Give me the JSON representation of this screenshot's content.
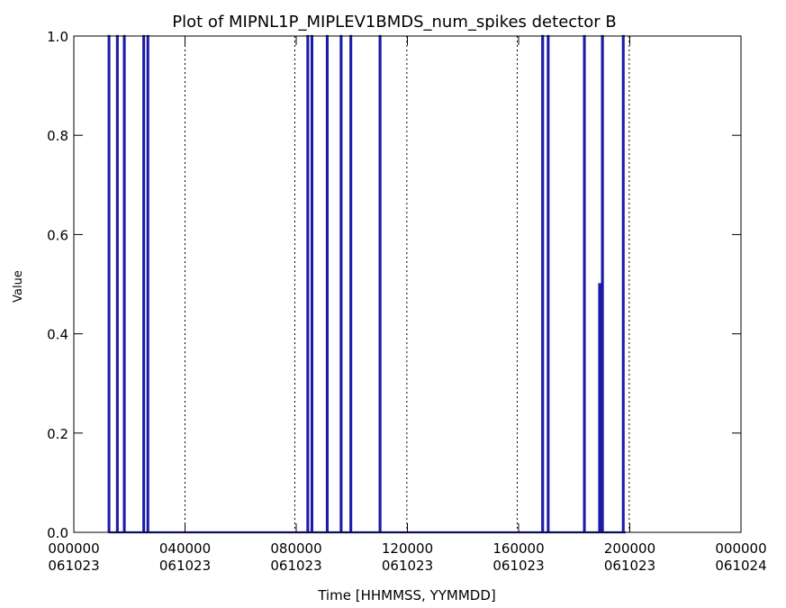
{
  "chart_data": {
    "type": "line",
    "title": "Plot of MIPNL1P_MIPLEV1BMDS_num_spikes detector B",
    "xlabel": "Time [HHMMSS, YYMMDD]",
    "ylabel": "Value",
    "xlim_hours": [
      0,
      24
    ],
    "ylim": [
      0,
      1
    ],
    "grid": false,
    "line_color": "#1c1ca8",
    "x_ticks": [
      {
        "hours": 0,
        "time": "000000",
        "date": "061023"
      },
      {
        "hours": 4,
        "time": "040000",
        "date": "061023"
      },
      {
        "hours": 8,
        "time": "080000",
        "date": "061023"
      },
      {
        "hours": 12,
        "time": "120000",
        "date": "061023"
      },
      {
        "hours": 16,
        "time": "160000",
        "date": "061023"
      },
      {
        "hours": 20,
        "time": "200000",
        "date": "061023"
      },
      {
        "hours": 24,
        "time": "000000",
        "date": "061024"
      }
    ],
    "y_ticks": [
      "0.0",
      "0.2",
      "0.4",
      "0.6",
      "0.8",
      "1.0"
    ],
    "orbit_boundaries_hours": [
      4.0,
      7.95,
      11.98,
      15.95,
      19.98
    ],
    "series": [
      {
        "points": [
          [
            1.25,
            0
          ],
          [
            1.25,
            1
          ],
          [
            1.28,
            1
          ],
          [
            1.28,
            0
          ],
          [
            1.55,
            0
          ],
          [
            1.55,
            1
          ],
          [
            1.58,
            1
          ],
          [
            1.58,
            0
          ],
          [
            1.8,
            0
          ],
          [
            1.8,
            1
          ],
          [
            1.83,
            1
          ],
          [
            1.83,
            0
          ],
          [
            2.5,
            0
          ],
          [
            2.5,
            1
          ],
          [
            2.53,
            1
          ],
          [
            2.53,
            0
          ],
          [
            2.65,
            0
          ],
          [
            2.65,
            1
          ],
          [
            2.68,
            1
          ],
          [
            2.68,
            0
          ],
          [
            3.0,
            0
          ],
          [
            8.4,
            0
          ],
          [
            8.4,
            1
          ],
          [
            8.43,
            1
          ],
          [
            8.43,
            0
          ],
          [
            8.55,
            0
          ],
          [
            8.55,
            1
          ],
          [
            8.58,
            1
          ],
          [
            8.58,
            0
          ],
          [
            9.1,
            0
          ],
          [
            9.1,
            1
          ],
          [
            9.13,
            1
          ],
          [
            9.13,
            0
          ],
          [
            9.6,
            0
          ],
          [
            9.6,
            1
          ],
          [
            9.63,
            1
          ],
          [
            9.63,
            0
          ],
          [
            9.95,
            0
          ],
          [
            9.95,
            1
          ],
          [
            9.98,
            1
          ],
          [
            9.98,
            0
          ],
          [
            11.0,
            0
          ],
          [
            11.0,
            1
          ],
          [
            11.03,
            1
          ],
          [
            11.03,
            0
          ],
          [
            11.25,
            0
          ],
          [
            16.85,
            0
          ],
          [
            16.85,
            1
          ],
          [
            16.88,
            1
          ],
          [
            16.88,
            0
          ],
          [
            17.05,
            0
          ],
          [
            17.05,
            1
          ],
          [
            17.08,
            1
          ],
          [
            17.08,
            0
          ],
          [
            17.2,
            0
          ],
          [
            17.3,
            0
          ],
          [
            18.35,
            0
          ],
          [
            18.35,
            1
          ],
          [
            18.38,
            1
          ],
          [
            18.38,
            0
          ],
          [
            18.9,
            0
          ],
          [
            18.9,
            0.5
          ],
          [
            18.93,
            0.5
          ],
          [
            18.93,
            0
          ],
          [
            19.0,
            0
          ],
          [
            19.0,
            1
          ],
          [
            19.03,
            1
          ],
          [
            19.03,
            0
          ],
          [
            19.75,
            0
          ],
          [
            19.75,
            1
          ],
          [
            19.78,
            1
          ],
          [
            19.78,
            0
          ],
          [
            19.85,
            0
          ]
        ]
      }
    ]
  }
}
